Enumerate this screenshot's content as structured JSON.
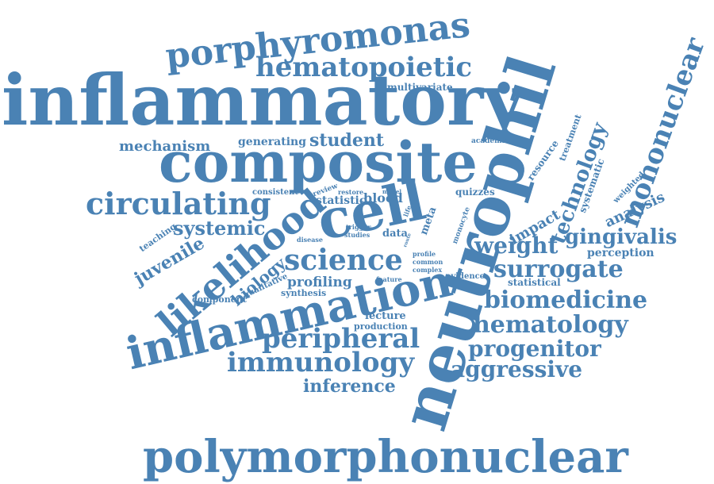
{
  "palette": {
    "word": "#4a82b4",
    "background": "#ffffff"
  },
  "words": [
    {
      "text": "inflammatory"
    },
    {
      "text": "neutrophil"
    },
    {
      "text": "composite"
    },
    {
      "text": "polymorphonuclear"
    },
    {
      "text": "cell"
    },
    {
      "text": "inflammation"
    },
    {
      "text": "likelihood"
    },
    {
      "text": "porphyromonas"
    },
    {
      "text": "hematopoietic"
    },
    {
      "text": "mononuclear"
    },
    {
      "text": "circulating"
    },
    {
      "text": "science"
    },
    {
      "text": "immunology"
    },
    {
      "text": "peripheral"
    },
    {
      "text": "biomedicine"
    },
    {
      "text": "hematology"
    },
    {
      "text": "surrogate"
    },
    {
      "text": "progenitor"
    },
    {
      "text": "aggressive"
    },
    {
      "text": "gingivalis"
    },
    {
      "text": "weight"
    },
    {
      "text": "technology"
    },
    {
      "text": "systemic"
    },
    {
      "text": "juvenile"
    },
    {
      "text": "inference"
    },
    {
      "text": "biology"
    },
    {
      "text": "student"
    },
    {
      "text": "mechanism"
    },
    {
      "text": "analysis"
    },
    {
      "text": "profiling"
    },
    {
      "text": "impact"
    },
    {
      "text": "statistic"
    },
    {
      "text": "blood"
    },
    {
      "text": "generating"
    },
    {
      "text": "systematic"
    },
    {
      "text": "treatment"
    },
    {
      "text": "resource"
    },
    {
      "text": "perception"
    },
    {
      "text": "statistical"
    },
    {
      "text": "multivariate"
    },
    {
      "text": "lecture"
    },
    {
      "text": "production"
    },
    {
      "text": "teaching"
    },
    {
      "text": "qualitative"
    },
    {
      "text": "component"
    },
    {
      "text": "synthesis"
    },
    {
      "text": "evidence"
    },
    {
      "text": "data"
    },
    {
      "text": "meta"
    },
    {
      "text": "quizzes"
    },
    {
      "text": "consistent"
    },
    {
      "text": "weighted"
    },
    {
      "text": "academic"
    },
    {
      "text": "review"
    },
    {
      "text": "restore"
    },
    {
      "text": "model"
    },
    {
      "text": "trigger"
    },
    {
      "text": "studies"
    },
    {
      "text": "disease"
    },
    {
      "text": "profile"
    },
    {
      "text": "common"
    },
    {
      "text": "complex"
    },
    {
      "text": "feature"
    },
    {
      "text": "monocyte"
    },
    {
      "text": "life"
    },
    {
      "text": "basic"
    },
    {
      "text": "route"
    }
  ]
}
